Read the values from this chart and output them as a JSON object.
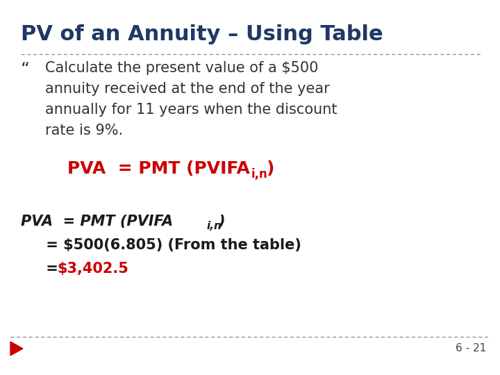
{
  "title": "PV of an Annuity – Using Table",
  "title_color": "#1F3864",
  "title_fontsize": 22,
  "bg_color": "#FFFFFF",
  "bullet_char": "“",
  "bullet_text_line1": "Calculate the present value of a $500",
  "bullet_text_line2": "annuity received at the end of the year",
  "bullet_text_line3": "annually for 11 years when the discount",
  "bullet_text_line4": "rate is 9%.",
  "bullet_color": "#333333",
  "bullet_fontsize": 15,
  "formula_color": "#CC0000",
  "formula_fontsize": 18,
  "pva_color": "#1a1a1a",
  "pva_value_color": "#CC0000",
  "pva_fontsize": 15,
  "divider_color": "#888888",
  "footer_triangle_color": "#CC0000",
  "footer_page": "6 - 21",
  "footer_color": "#444444",
  "footer_fontsize": 11
}
